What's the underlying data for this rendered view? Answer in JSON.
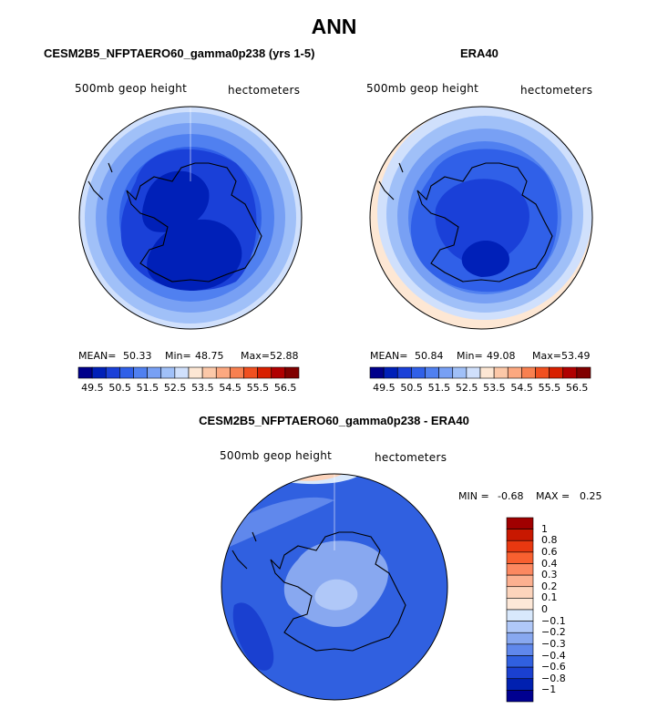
{
  "page_title": "ANN",
  "chart_data": [
    {
      "type": "contour-map",
      "projection": "south-polar-stereographic",
      "title": "CESM2B5_NFPTAERO60_gamma0p238 (yrs 1-5)",
      "field_label": "500mb geop height",
      "units": "hectometers",
      "stats": {
        "mean_label": "MEAN=",
        "mean": "50.33",
        "min_label": "Min=",
        "min": "48.75",
        "max_label": "Max=",
        "max": "52.88"
      },
      "colorbar": {
        "tick_labels": [
          "49.5",
          "50.5",
          "51.5",
          "52.5",
          "53.5",
          "54.5",
          "55.5",
          "56.5"
        ],
        "colors": [
          "#00008b",
          "#0020b8",
          "#1a40d8",
          "#3060e8",
          "#5080f0",
          "#78a0f4",
          "#a0c0f8",
          "#d0e0fc",
          "#fde7d4",
          "#fcc8a8",
          "#fca880",
          "#f88050",
          "#f05020",
          "#d82000",
          "#b00000",
          "#800000"
        ]
      }
    },
    {
      "type": "contour-map",
      "projection": "south-polar-stereographic",
      "title": "ERA40",
      "field_label": "500mb geop height",
      "units": "hectometers",
      "stats": {
        "mean_label": "MEAN=",
        "mean": "50.84",
        "min_label": "Min=",
        "min": "49.08",
        "max_label": "Max=",
        "max": "53.49"
      },
      "colorbar": {
        "tick_labels": [
          "49.5",
          "50.5",
          "51.5",
          "52.5",
          "53.5",
          "54.5",
          "55.5",
          "56.5"
        ],
        "colors": [
          "#00008b",
          "#0020b8",
          "#1a40d8",
          "#3060e8",
          "#5080f0",
          "#78a0f4",
          "#a0c0f8",
          "#d0e0fc",
          "#fde7d4",
          "#fcc8a8",
          "#fca880",
          "#f88050",
          "#f05020",
          "#d82000",
          "#b00000",
          "#800000"
        ]
      }
    },
    {
      "type": "contour-map",
      "projection": "south-polar-stereographic",
      "title": "CESM2B5_NFPTAERO60_gamma0p238 - ERA40",
      "field_label": "500mb geop height",
      "units": "hectometers",
      "stats": {
        "min_label": "MIN =",
        "min": "-0.68",
        "max_label": "MAX =",
        "max": "0.25"
      },
      "colorbar": {
        "orientation": "vertical",
        "tick_labels": [
          "1",
          "0.8",
          "0.6",
          "0.4",
          "0.3",
          "0.2",
          "0.1",
          "0",
          "−0.1",
          "−0.2",
          "−0.3",
          "−0.4",
          "−0.6",
          "−0.8",
          "−1"
        ],
        "colors": [
          "#a00000",
          "#c81800",
          "#e83810",
          "#f86030",
          "#fc8860",
          "#fcb090",
          "#fcd4bc",
          "#fde8d8",
          "#d8e8fc",
          "#b0c8f8",
          "#88a8f0",
          "#6088ec",
          "#3060e0",
          "#1a40d0",
          "#0020b0",
          "#000090"
        ]
      }
    }
  ]
}
